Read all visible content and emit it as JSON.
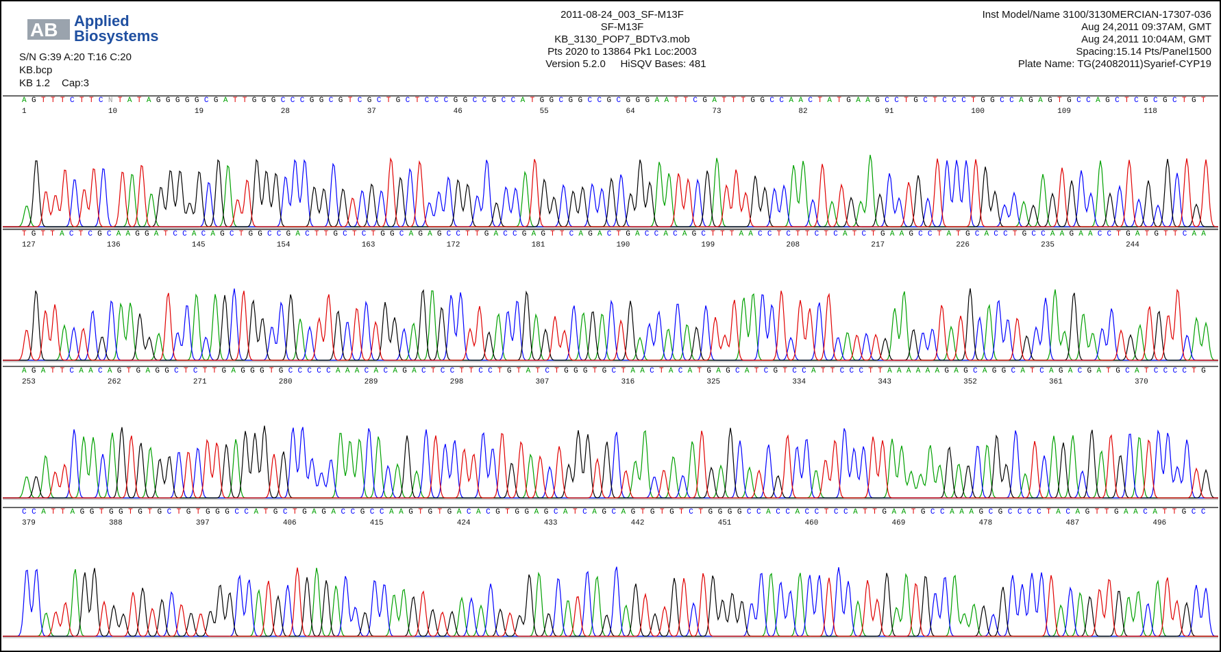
{
  "header": {
    "logo_line1": "Applied",
    "logo_line2": "Biosystems",
    "left": [
      "S/N G:39 A:20 T:16 C:20",
      "KB.bcp"
    ],
    "kb": "KB 1.2",
    "cap": "Cap:3",
    "center": [
      "2011-08-24_003_SF-M13F",
      "SF-M13F",
      "KB_3130_POP7_BDTv3.mob",
      "Pts 2020 to 13864 Pk1 Loc:2003"
    ],
    "version": "Version 5.2.0",
    "hisqv": "HiSQV Bases: 481",
    "right": [
      "Inst Model/Name 3100/3130MERCIAN-17307-036",
      "Aug 24,2011 09:37AM, GMT",
      "Aug 24,2011 10:04AM, GMT",
      "Spacing:15.14 Pts/Panel1500",
      "Plate Name: TG(24082011)Syarief-CYP19"
    ]
  },
  "rows": [
    {
      "sequence": "AGTTTCTTCNTATAGGGGGCGATTGGGCCCGGCGTCGCTGCTCCCGGCCGCCATGGCGGCCGCGGGAATTCGATTTGGCCAACTATGAAGCCTGCTCCCTGGCCAGAGTGCCAGCTCGCGCTGT",
      "positions": [
        1,
        10,
        19,
        28,
        37,
        46,
        55,
        64,
        73,
        82,
        91,
        100,
        109,
        118
      ]
    },
    {
      "sequence": "TGTTACTCGCAAGGATCCACAGCTGGCCGACTTGCTCTGGCAGAGCCTTGACCGAGTTCAGACTGACCACAGCTTTAACCTCTTCTCATCTGAAGCCTATGCACCTGCCAAGAACCTGATGTTCAA",
      "positions": [
        127,
        136,
        145,
        154,
        163,
        172,
        181,
        190,
        199,
        208,
        217,
        226,
        235,
        244
      ]
    },
    {
      "sequence": "AGATTCAACAGTGAGGCTCTTGAGGGTGCCCCCAAACACAGACTCCTTCCTGTATCTGGGTGCTAACTACATGAGCATCGTCCATTCCCTTAAAAAAGAGCAGGCATCAGACGATGCATCCCCTG",
      "positions": [
        253,
        262,
        271,
        280,
        289,
        298,
        307,
        316,
        325,
        334,
        343,
        352,
        361,
        370
      ]
    },
    {
      "sequence": "CCATTAGGTGGTGTGCTGTGGGCCATGCTGAGACCGCCAAGTGTGACACGTGGAGCATCAGCAGTGTGTCTGGGGCCACCACCTCCATTGAATGCCAAAGCGCCCCTACAGTTGAACATTGCC",
      "positions": [
        379,
        388,
        397,
        406,
        415,
        424,
        433,
        442,
        451,
        460,
        469,
        478,
        487,
        496
      ]
    }
  ]
}
